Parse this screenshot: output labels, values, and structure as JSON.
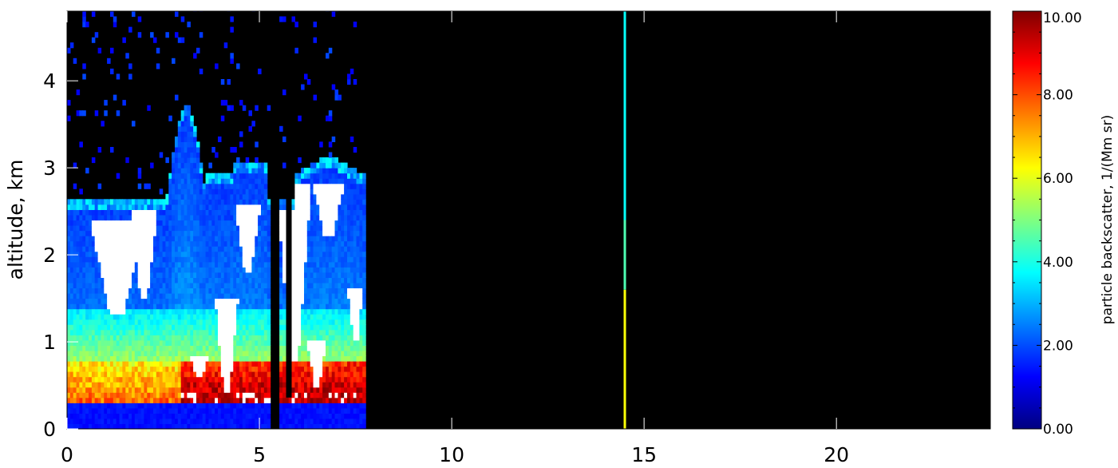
{
  "chart_data": {
    "type": "heatmap",
    "title": "",
    "xlabel": "",
    "ylabel": "altitude, km",
    "xlim": [
      0,
      24
    ],
    "ylim": [
      0,
      4.8
    ],
    "x_ticks": [
      "0",
      "5",
      "10",
      "15",
      "20"
    ],
    "x_tick_values": [
      0,
      5,
      10,
      15,
      20
    ],
    "y_ticks": [
      "0",
      "1",
      "2",
      "3",
      "4"
    ],
    "y_tick_values": [
      0,
      1,
      2,
      3,
      4
    ],
    "data_extent_x": [
      0,
      7.8
    ],
    "colorbar": {
      "label": "particle backscatter, 1/(Mm sr)",
      "ticks": [
        "0.00",
        "2.00",
        "4.00",
        "6.00",
        "8.00",
        "10.00"
      ],
      "tick_values": [
        0,
        2,
        4,
        6,
        8,
        10
      ],
      "range": [
        0,
        10
      ],
      "colormap": "jet",
      "over_color": "#ffffff",
      "no_data_color": "#000000"
    },
    "notable_features": [
      {
        "name": "saturated cloud layer",
        "x_range": [
          0.2,
          7.8
        ],
        "y_range": [
          0.4,
          2.6
        ],
        "value": "> 10"
      },
      {
        "name": "near-surface layer",
        "x_range": [
          0,
          7.8
        ],
        "y_range": [
          0,
          0.3
        ],
        "value": 1.3
      },
      {
        "name": "enhanced aerosol",
        "x_range": [
          3.0,
          7.8
        ],
        "y_range": [
          0.3,
          0.8
        ],
        "value": 7.5
      },
      {
        "name": "isolated column",
        "x": 14.5,
        "y_range": [
          0,
          4.8
        ]
      }
    ]
  }
}
